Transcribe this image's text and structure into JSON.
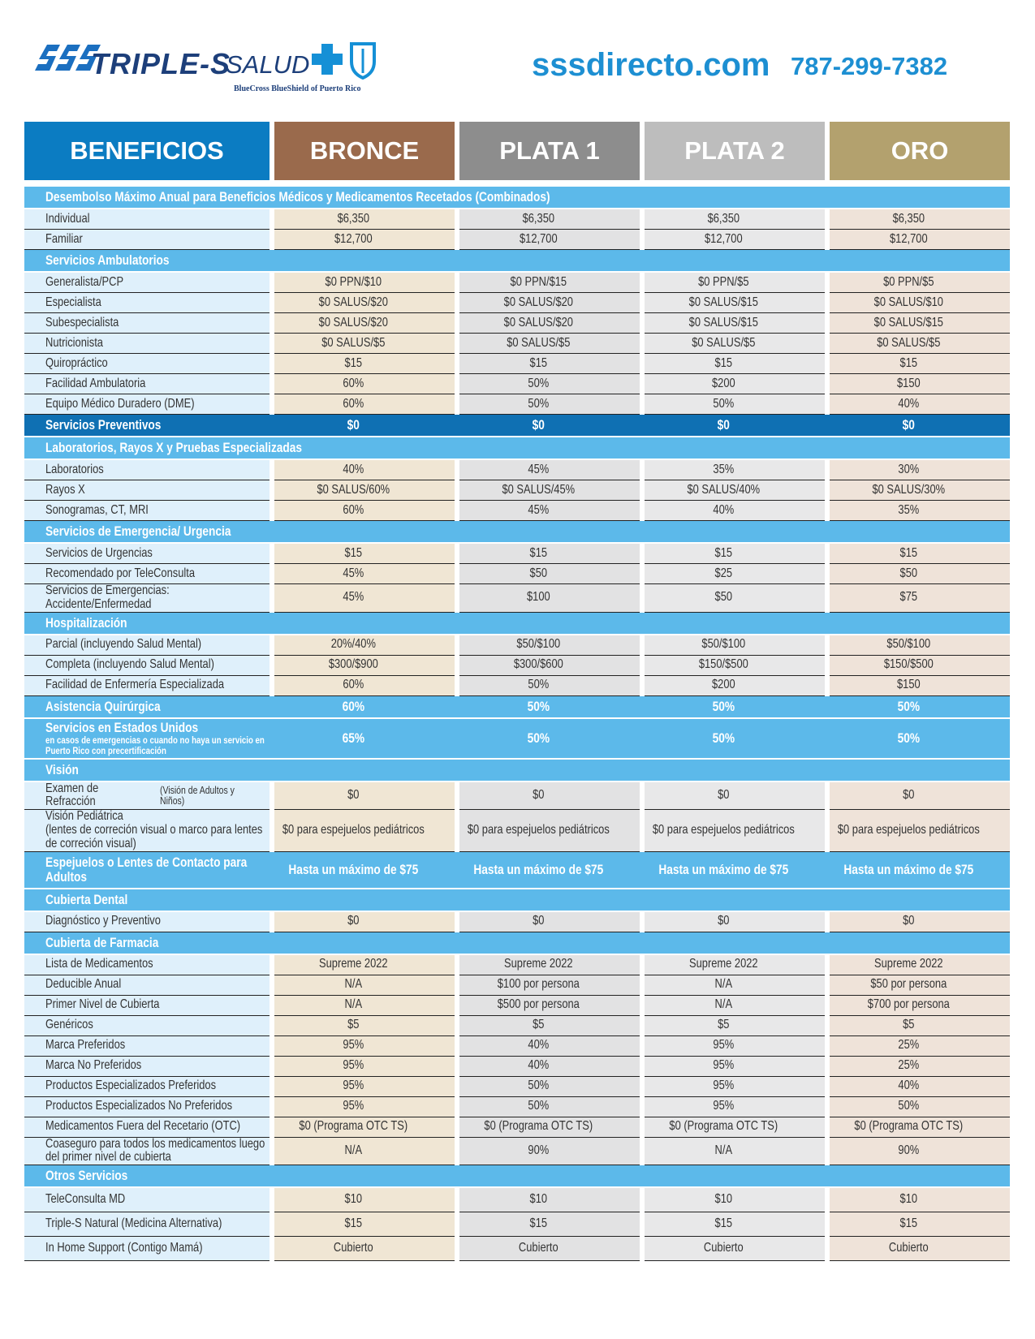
{
  "header": {
    "brand": "TRIPLE-S",
    "brand_suffix": "SALUD",
    "tagline": "BlueCross BlueShield of Puerto Rico",
    "website": "sssdirecto.com",
    "phone": "787-299-7382"
  },
  "table": {
    "columns": [
      "BENEFICIOS",
      "BRONCE",
      "PLATA 1",
      "PLATA 2",
      "ORO"
    ],
    "sections": [
      {
        "title": "Desembolso Máximo Anual para Beneficios Médicos y Medicamentos Recetados (Combinados)",
        "rows": [
          {
            "label": "Individual",
            "values": [
              "$6,350",
              "$6,350",
              "$6,350",
              "$6,350"
            ]
          },
          {
            "label": "Familiar",
            "values": [
              "$12,700",
              "$12,700",
              "$12,700",
              "$12,700"
            ]
          }
        ]
      },
      {
        "title": "Servicios Ambulatorios",
        "rows": [
          {
            "label": "Generalista/PCP",
            "values": [
              "$0 PPN/$10",
              "$0 PPN/$15",
              "$0 PPN/$5",
              "$0 PPN/$5"
            ]
          },
          {
            "label": "Especialista",
            "values": [
              "$0 SALUS/$20",
              "$0 SALUS/$20",
              "$0 SALUS/$15",
              "$0 SALUS/$10"
            ]
          },
          {
            "label": "Subespecialista",
            "values": [
              "$0 SALUS/$20",
              "$0 SALUS/$20",
              "$0 SALUS/$15",
              "$0 SALUS/$15"
            ]
          },
          {
            "label": "Nutricionista",
            "values": [
              "$0 SALUS/$5",
              "$0 SALUS/$5",
              "$0 SALUS/$5",
              "$0 SALUS/$5"
            ]
          },
          {
            "label": "Quiropráctico",
            "values": [
              "$15",
              "$15",
              "$15",
              "$15"
            ]
          },
          {
            "label": "Facilidad Ambulatoria",
            "values": [
              "60%",
              "50%",
              "$200",
              "$150"
            ]
          },
          {
            "label": "Equipo Médico Duradero (DME)",
            "values": [
              "60%",
              "50%",
              "50%",
              "40%"
            ]
          }
        ]
      },
      {
        "title": "Servicios Preventivos",
        "values": [
          "$0",
          "$0",
          "$0",
          "$0"
        ],
        "rows": []
      },
      {
        "title": "Laboratorios, Rayos X y Pruebas Especializadas",
        "rows": [
          {
            "label": "Laboratorios",
            "values": [
              "40%",
              "45%",
              "35%",
              "30%"
            ]
          },
          {
            "label": "Rayos X",
            "values": [
              "$0 SALUS/60%",
              "$0 SALUS/45%",
              "$0 SALUS/40%",
              "$0 SALUS/30%"
            ]
          },
          {
            "label": "Sonogramas, CT, MRI",
            "values": [
              "60%",
              "45%",
              "40%",
              "35%"
            ]
          }
        ]
      },
      {
        "title": "Servicios de Emergencia/ Urgencia",
        "rows": [
          {
            "label": "Servicios de Urgencias",
            "values": [
              "$15",
              "$15",
              "$15",
              "$15"
            ]
          },
          {
            "label": "Recomendado por TeleConsulta",
            "values": [
              "45%",
              "$50",
              "$25",
              "$50"
            ]
          },
          {
            "label": "Servicios de Emergencias: Accidente/Enfermedad",
            "values": [
              "45%",
              "$100",
              "$50",
              "$75"
            ]
          }
        ]
      },
      {
        "title": "Hospitalización",
        "rows": [
          {
            "label": "Parcial (incluyendo Salud Mental)",
            "values": [
              "20%/40%",
              "$50/$100",
              "$50/$100",
              "$50/$100"
            ]
          },
          {
            "label": "Completa (incluyendo Salud Mental)",
            "values": [
              "$300/$900",
              "$300/$600",
              "$150/$500",
              "$150/$500"
            ]
          },
          {
            "label": "Facilidad de Enfermería Especializada",
            "values": [
              "60%",
              "50%",
              "$200",
              "$150"
            ]
          }
        ]
      },
      {
        "title": "Asistencia Quirúrgica",
        "values": [
          "60%",
          "50%",
          "50%",
          "50%"
        ],
        "rows": []
      },
      {
        "title": "Servicios en Estados Unidos",
        "note": "en casos de emergencias o cuando no haya un servicio en Puerto Rico con precertificación",
        "values": [
          "65%",
          "50%",
          "50%",
          "50%"
        ],
        "rows": []
      },
      {
        "title": "Visión",
        "rows": [
          {
            "label": "Examen de Refracción",
            "sublabel": "(Visión de Adultos y Niños)",
            "values": [
              "$0",
              "$0",
              "$0",
              "$0"
            ]
          },
          {
            "label": "Visión Pediátrica",
            "sublabel": "(lentes de correción visual o marco para lentes de correción visual)",
            "values": [
              "$0 para espejuelos pediátricos",
              "$0 para espejuelos pediátricos",
              "$0 para espejuelos pediátricos",
              "$0 para espejuelos pediátricos"
            ]
          }
        ]
      },
      {
        "title": "Espejuelos o Lentes de Contacto para Adultos",
        "values": [
          "Hasta un máximo de $75",
          "Hasta un máximo de $75",
          "Hasta un máximo de $75",
          "Hasta un máximo de $75"
        ],
        "rows": []
      },
      {
        "title": "Cubierta Dental",
        "rows": [
          {
            "label": "Diagnóstico y Preventivo",
            "values": [
              "$0",
              "$0",
              "$0",
              "$0"
            ]
          }
        ]
      },
      {
        "title": "Cubierta de Farmacia",
        "rows": [
          {
            "label": "Lista de Medicamentos",
            "values": [
              "Supreme 2022",
              "Supreme 2022",
              "Supreme 2022",
              "Supreme 2022"
            ]
          },
          {
            "label": "Deducible Anual",
            "values": [
              "N/A",
              "$100 por persona",
              "N/A",
              "$50 por persona"
            ]
          },
          {
            "label": "Primer Nivel de Cubierta",
            "values": [
              "N/A",
              "$500 por persona",
              "N/A",
              "$700 por persona"
            ]
          },
          {
            "label": "Genéricos",
            "values": [
              "$5",
              "$5",
              "$5",
              "$5"
            ]
          },
          {
            "label": "Marca Preferidos",
            "values": [
              "95%",
              "40%",
              "95%",
              "25%"
            ]
          },
          {
            "label": "Marca No Preferidos",
            "values": [
              "95%",
              "40%",
              "95%",
              "25%"
            ]
          },
          {
            "label": "Productos Especializados Preferidos",
            "values": [
              "95%",
              "50%",
              "95%",
              "40%"
            ]
          },
          {
            "label": "Productos Especializados No Preferidos",
            "values": [
              "95%",
              "50%",
              "95%",
              "50%"
            ]
          },
          {
            "label": "Medicamentos Fuera del Recetario (OTC)",
            "values": [
              "$0 (Programa OTC TS)",
              "$0 (Programa OTC TS)",
              "$0 (Programa OTC TS)",
              "$0 (Programa OTC TS)"
            ]
          },
          {
            "label": "Coaseguro para todos los medicamentos luego del primer nivel de cubierta",
            "values": [
              "N/A",
              "90%",
              "N/A",
              "90%"
            ]
          }
        ]
      },
      {
        "title": "Otros Servicios",
        "rows": [
          {
            "label": "TeleConsulta MD",
            "values": [
              "$10",
              "$10",
              "$10",
              "$10"
            ]
          },
          {
            "label": "Triple-S Natural (Medicina Alternativa)",
            "values": [
              "$15",
              "$15",
              "$15",
              "$15"
            ]
          },
          {
            "label": "In Home Support (Contigo Mamá)",
            "values": [
              "Cubierto",
              "Cubierto",
              "Cubierto",
              "Cubierto"
            ]
          }
        ]
      }
    ]
  }
}
